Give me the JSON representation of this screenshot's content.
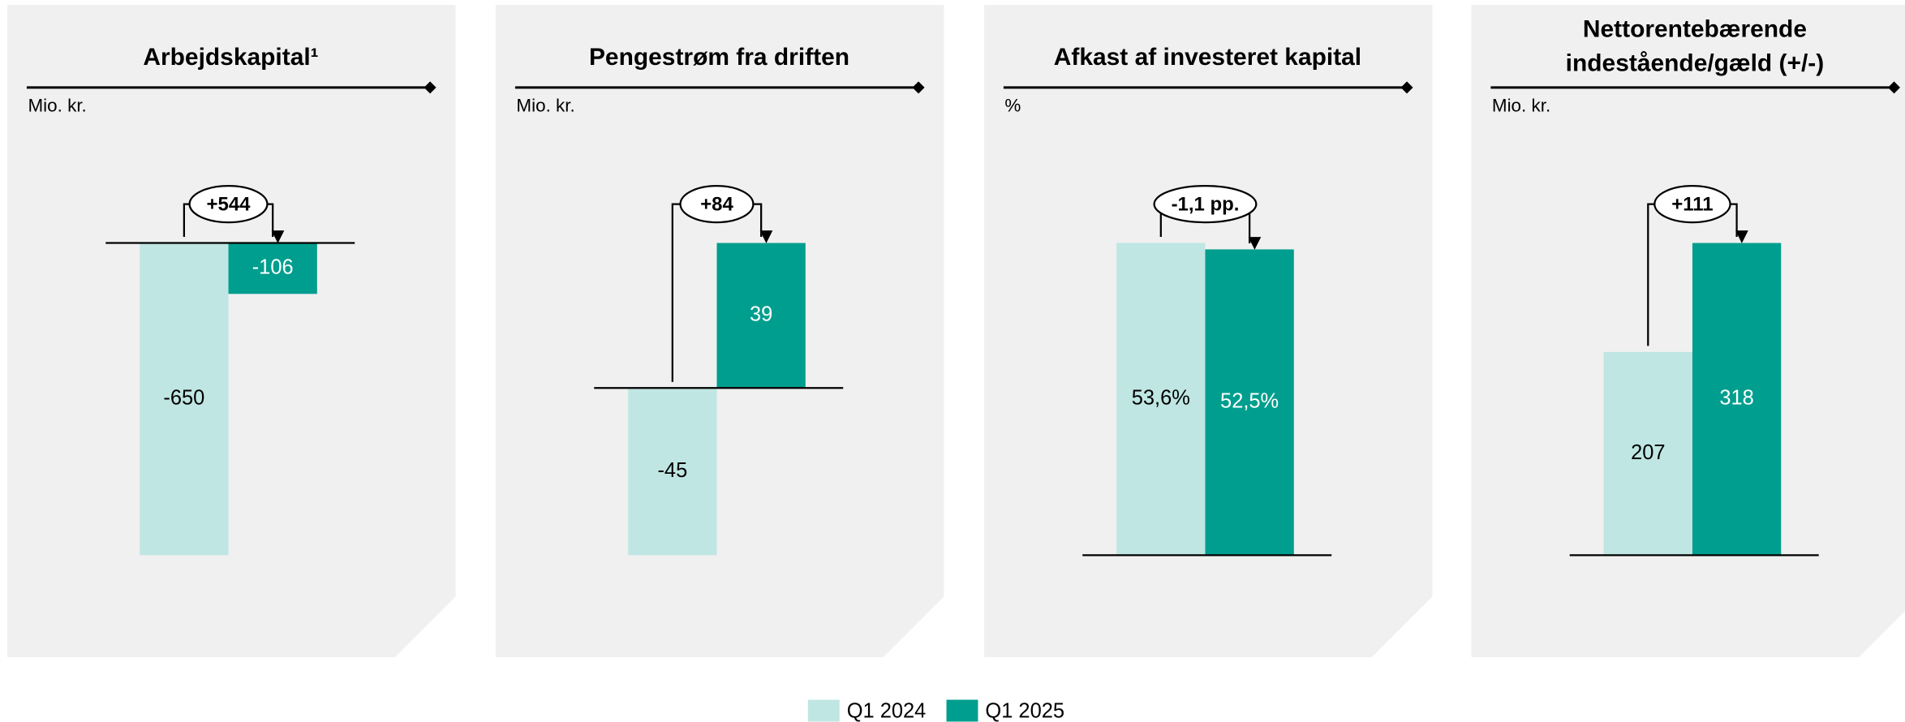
{
  "chart_data": [
    {
      "type": "bar",
      "title": [
        "Arbejdskapital¹"
      ],
      "subtitle": "Mio. kr.",
      "values": [
        -650,
        -106
      ],
      "annotation": "+544"
    },
    {
      "type": "bar",
      "title": [
        "Pengestrøm fra driften"
      ],
      "subtitle": "Mio. kr.",
      "values": [
        -45,
        39
      ],
      "annotation": "+84"
    },
    {
      "type": "bar",
      "title": [
        "Afkast af investeret kapital"
      ],
      "subtitle": "%",
      "values": [
        53.6,
        52.5
      ],
      "value_labels": [
        "53,6%",
        "52,5%"
      ],
      "annotation": "-1,1 pp."
    },
    {
      "type": "bar",
      "title": [
        "Nettorentebærende",
        "indestående/gæld (+/-)"
      ],
      "subtitle": "Mio. kr.",
      "values": [
        207,
        318
      ],
      "annotation": "+111"
    }
  ],
  "legend": [
    {
      "name": "Q1 2024",
      "color": "#bfe6e2"
    },
    {
      "name": "Q1 2025",
      "color": "#009e8e"
    }
  ]
}
